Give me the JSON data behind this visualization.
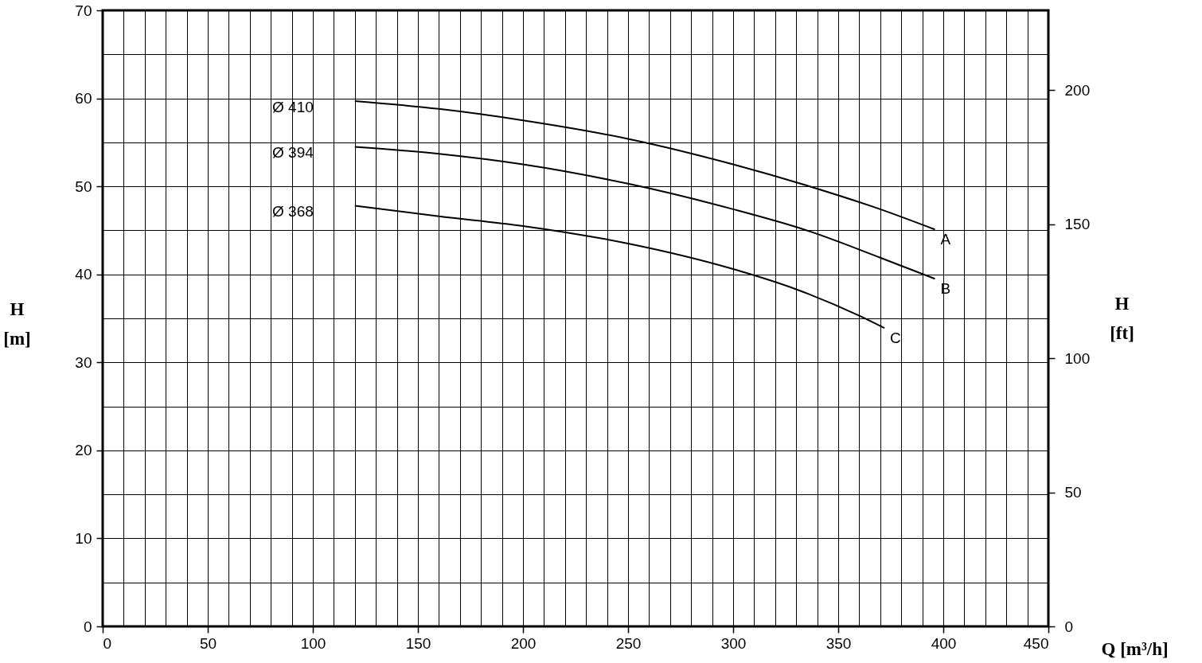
{
  "chart_data": {
    "type": "line",
    "xlabel": "Q [m³/h]",
    "ylabel": "H\n[m]",
    "y2label": "H\n[ft]",
    "xlim": [
      0,
      450
    ],
    "xticks": [
      0,
      {
        "value": 10,
        "label": null
      },
      {
        "value": 20,
        "label": null
      },
      {
        "value": 30,
        "label": null
      },
      {
        "value": 40,
        "label": null
      },
      50,
      {
        "value": 60,
        "label": null
      },
      {
        "value": 70,
        "label": null
      },
      {
        "value": 80,
        "label": null
      },
      {
        "value": 90,
        "label": null
      },
      100,
      {
        "value": 110,
        "label": null
      },
      {
        "value": 120,
        "label": null
      },
      {
        "value": 130,
        "label": null
      },
      {
        "value": 140,
        "label": null
      },
      150,
      {
        "value": 160,
        "label": null
      },
      {
        "value": 170,
        "label": null
      },
      {
        "value": 180,
        "label": null
      },
      {
        "value": 190,
        "label": null
      },
      200,
      {
        "value": 210,
        "label": null
      },
      {
        "value": 220,
        "label": null
      },
      {
        "value": 230,
        "label": null
      },
      {
        "value": 240,
        "label": null
      },
      250,
      {
        "value": 260,
        "label": null
      },
      {
        "value": 270,
        "label": null
      },
      {
        "value": 280,
        "label": null
      },
      {
        "value": 290,
        "label": null
      },
      300,
      {
        "value": 310,
        "label": null
      },
      {
        "value": 320,
        "label": null
      },
      {
        "value": 330,
        "label": null
      },
      {
        "value": 340,
        "label": null
      },
      350,
      {
        "value": 360,
        "label": null
      },
      {
        "value": 370,
        "label": null
      },
      {
        "value": 380,
        "label": null
      },
      {
        "value": 390,
        "label": null
      },
      400,
      {
        "value": 410,
        "label": null
      },
      {
        "value": 420,
        "label": null
      },
      {
        "value": 430,
        "label": null
      },
      {
        "value": 440,
        "label": null
      },
      450
    ],
    "ylim": [
      0,
      70
    ],
    "yticks": [
      0,
      {
        "value": 5,
        "label": null
      },
      10,
      {
        "value": 15,
        "label": null
      },
      20,
      {
        "value": 25,
        "label": null
      },
      30,
      {
        "value": 35,
        "label": null
      },
      40,
      {
        "value": 45,
        "label": null
      },
      50,
      {
        "value": 55,
        "label": null
      },
      60,
      {
        "value": 65,
        "label": null
      },
      70
    ],
    "y2lim": [
      0,
      229.7
    ],
    "y2ticks": [
      0,
      50,
      100,
      150,
      200
    ],
    "grid": true,
    "series": [
      {
        "name": "A",
        "color": "#000000",
        "x": [
          120,
          160,
          200,
          250,
          300,
          335,
          370,
          396
        ],
        "values": [
          59.7,
          58.8,
          57.5,
          55.4,
          52.5,
          50.1,
          47.4,
          45.1
        ]
      },
      {
        "name": "B",
        "color": "#000000",
        "x": [
          120,
          160,
          200,
          250,
          300,
          335,
          370,
          396
        ],
        "values": [
          54.5,
          53.7,
          52.5,
          50.3,
          47.4,
          45.0,
          41.9,
          39.5
        ]
      },
      {
        "name": "C",
        "color": "#000000",
        "x": [
          120,
          160,
          200,
          250,
          300,
          330,
          360,
          372
        ],
        "values": [
          47.8,
          46.6,
          45.5,
          43.5,
          40.6,
          38.3,
          35.3,
          33.9
        ]
      }
    ],
    "annotations": [
      "Ø 410",
      "Ø 394",
      "Ø 368"
    ]
  }
}
